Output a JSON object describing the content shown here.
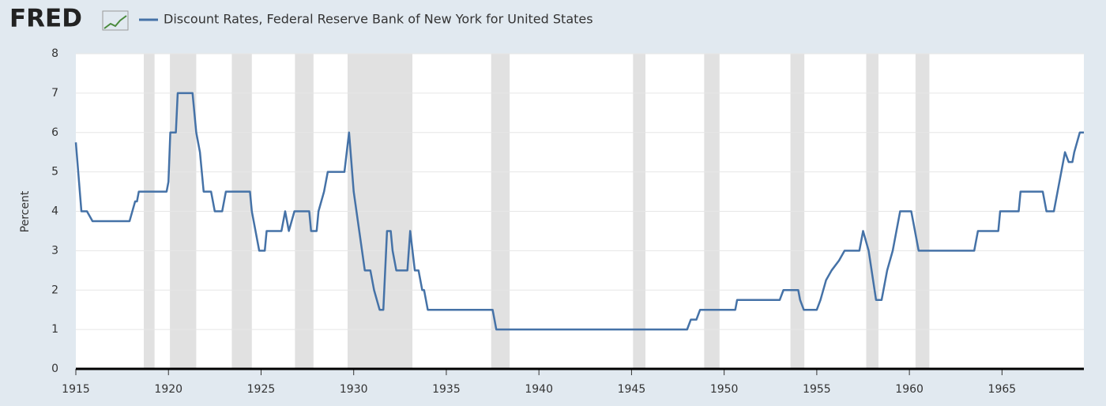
{
  "chart_data": {
    "type": "line",
    "logo": "FRED",
    "ylabel": "Percent",
    "x": [
      1915,
      1915.3,
      1915.6,
      1915.9,
      1917.9,
      1918.2,
      1918.3,
      1918.4,
      1919.9,
      1920,
      1920.1,
      1920.4,
      1920.5,
      1921.3,
      1921.5,
      1921.7,
      1921.9,
      1922.3,
      1922.5,
      1922.9,
      1923.1,
      1924.4,
      1924.5,
      1924.7,
      1924.9,
      1925.2,
      1925.3,
      1926.1,
      1926.3,
      1926.5,
      1926.8,
      1927.6,
      1927.7,
      1928,
      1928.1,
      1928.4,
      1928.6,
      1929.5,
      1929.75,
      1930,
      1930.3,
      1930.6,
      1930.9,
      1931.1,
      1931.4,
      1931.6,
      1931.8,
      1932,
      1932.1,
      1932.3,
      1932.9,
      1933.05,
      1933.3,
      1933.5,
      1933.7,
      1933.8,
      1934,
      1937.5,
      1937.7,
      1948,
      1948.2,
      1948.5,
      1948.7,
      1950.6,
      1950.7,
      1953,
      1953.2,
      1954,
      1954.1,
      1954.3,
      1955,
      1955.2,
      1955.5,
      1955.8,
      1956.2,
      1956.5,
      1957.3,
      1957.5,
      1957.8,
      1958.2,
      1958.5,
      1958.8,
      1959.1,
      1959.3,
      1959.5,
      1960.1,
      1960.3,
      1960.5,
      1963.5,
      1963.7,
      1964.8,
      1964.9,
      1965.9,
      1966,
      1967.2,
      1967.4,
      1967.8,
      1968,
      1968.4,
      1968.6,
      1968.8,
      1968.9,
      1969.2,
      1969.42
    ],
    "series": [
      {
        "name": "Discount Rates, Federal Reserve Bank of New York for United States",
        "color": "#4572a7",
        "values": [
          5.75,
          4,
          4,
          3.75,
          3.75,
          4.25,
          4.25,
          4.5,
          4.5,
          4.75,
          6,
          6,
          7,
          7,
          6,
          5.5,
          4.5,
          4.5,
          4,
          4,
          4.5,
          4.5,
          4,
          3.5,
          3,
          3,
          3.5,
          3.5,
          4,
          3.5,
          4,
          4,
          3.5,
          3.5,
          4,
          4.5,
          5,
          5,
          6,
          4.5,
          3.5,
          2.5,
          2.5,
          2,
          1.5,
          1.5,
          3.5,
          3.5,
          3,
          2.5,
          2.5,
          3.5,
          2.5,
          2.5,
          2,
          2,
          1.5,
          1.5,
          1,
          1,
          1.25,
          1.25,
          1.5,
          1.5,
          1.75,
          1.75,
          2,
          2,
          1.75,
          1.5,
          1.5,
          1.75,
          2.25,
          2.5,
          2.75,
          3,
          3,
          3.5,
          3,
          1.75,
          1.75,
          2.5,
          3,
          3.5,
          4,
          4,
          3.5,
          3,
          3,
          3.5,
          3.5,
          4,
          4,
          4.5,
          4.5,
          4,
          4,
          4.5,
          5.5,
          5.25,
          5.25,
          5.5,
          6,
          6
        ]
      }
    ],
    "recessions": [
      [
        1918.67,
        1919.25
      ],
      [
        1920.08,
        1921.5
      ],
      [
        1923.42,
        1924.5
      ],
      [
        1926.83,
        1927.83
      ],
      [
        1929.67,
        1933.17
      ],
      [
        1937.42,
        1938.42
      ],
      [
        1945.08,
        1945.75
      ],
      [
        1948.92,
        1949.75
      ],
      [
        1953.58,
        1954.33
      ],
      [
        1957.67,
        1958.33
      ],
      [
        1960.33,
        1961.08
      ]
    ],
    "xlim": [
      1915,
      1969.42
    ],
    "xticks": [
      1915,
      1920,
      1925,
      1930,
      1935,
      1940,
      1945,
      1950,
      1955,
      1960,
      1965
    ],
    "ylim": [
      0,
      8
    ],
    "yticks": [
      0,
      1,
      2,
      3,
      4,
      5,
      6,
      7,
      8
    ],
    "grid": true
  }
}
